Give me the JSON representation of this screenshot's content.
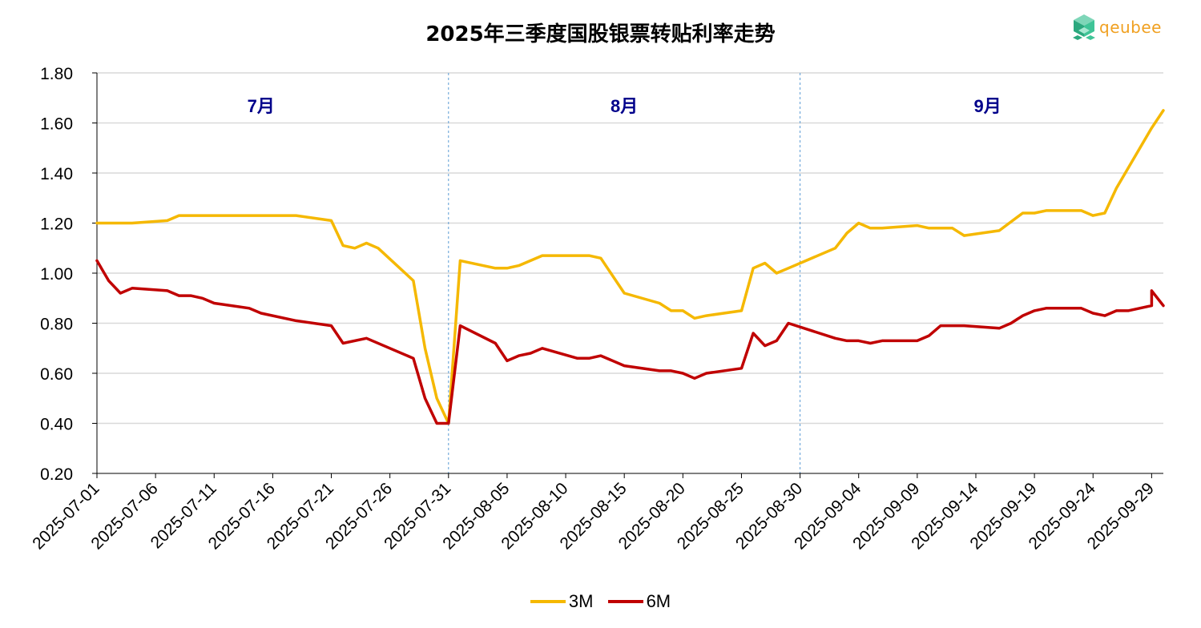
{
  "title": "2025年三季度国股银票转贴利率走势",
  "logo": {
    "text": "qeubee",
    "icon": "cube-logo-icon"
  },
  "colors": {
    "3M": "#F5B800",
    "6M": "#C00000",
    "month_label": "#00008B",
    "grid": "#D9D9D9",
    "divider": "#5B9BD5"
  },
  "chart_data": {
    "type": "line",
    "title": "2025年三季度国股银票转贴利率走势",
    "xlabel": "",
    "ylabel": "",
    "x_start": "2025-07-01",
    "x_end": "2025-09-30",
    "ylim": [
      0.2,
      1.8
    ],
    "yticks": [
      "0.20",
      "0.40",
      "0.60",
      "0.80",
      "1.00",
      "1.20",
      "1.40",
      "1.60",
      "1.80"
    ],
    "xticks": [
      "2025-07-01",
      "2025-07-06",
      "2025-07-11",
      "2025-07-16",
      "2025-07-21",
      "2025-07-26",
      "2025-07-31",
      "2025-08-05",
      "2025-08-10",
      "2025-08-15",
      "2025-08-20",
      "2025-08-25",
      "2025-08-30",
      "2025-09-04",
      "2025-09-09",
      "2025-09-14",
      "2025-09-19",
      "2025-09-24",
      "2025-09-29"
    ],
    "grid": true,
    "legend_position": "bottom",
    "month_labels": [
      {
        "date": "2025-07-15",
        "label": "7月"
      },
      {
        "date": "2025-08-15",
        "label": "8月"
      },
      {
        "date": "2025-09-15",
        "label": "9月"
      }
    ],
    "dividers": [
      "2025-07-31",
      "2025-08-30"
    ],
    "series": [
      {
        "name": "3M",
        "points": [
          [
            "2025-07-01",
            1.2
          ],
          [
            "2025-07-04",
            1.2
          ],
          [
            "2025-07-07",
            1.21
          ],
          [
            "2025-07-08",
            1.23
          ],
          [
            "2025-07-18",
            1.23
          ],
          [
            "2025-07-21",
            1.21
          ],
          [
            "2025-07-22",
            1.11
          ],
          [
            "2025-07-23",
            1.1
          ],
          [
            "2025-07-24",
            1.12
          ],
          [
            "2025-07-25",
            1.1
          ],
          [
            "2025-07-28",
            0.97
          ],
          [
            "2025-07-29",
            0.7
          ],
          [
            "2025-07-30",
            0.5
          ],
          [
            "2025-07-31",
            0.4
          ],
          [
            "2025-08-01",
            1.05
          ],
          [
            "2025-08-04",
            1.02
          ],
          [
            "2025-08-05",
            1.02
          ],
          [
            "2025-08-06",
            1.03
          ],
          [
            "2025-08-08",
            1.07
          ],
          [
            "2025-08-12",
            1.07
          ],
          [
            "2025-08-13",
            1.06
          ],
          [
            "2025-08-15",
            0.92
          ],
          [
            "2025-08-18",
            0.88
          ],
          [
            "2025-08-19",
            0.85
          ],
          [
            "2025-08-20",
            0.85
          ],
          [
            "2025-08-21",
            0.82
          ],
          [
            "2025-08-22",
            0.83
          ],
          [
            "2025-08-25",
            0.85
          ],
          [
            "2025-08-26",
            1.02
          ],
          [
            "2025-08-27",
            1.04
          ],
          [
            "2025-08-28",
            1.0
          ],
          [
            "2025-08-29",
            1.02
          ],
          [
            "2025-09-02",
            1.1
          ],
          [
            "2025-09-03",
            1.16
          ],
          [
            "2025-09-04",
            1.2
          ],
          [
            "2025-09-05",
            1.18
          ],
          [
            "2025-09-06",
            1.18
          ],
          [
            "2025-09-09",
            1.19
          ],
          [
            "2025-09-10",
            1.18
          ],
          [
            "2025-09-12",
            1.18
          ],
          [
            "2025-09-13",
            1.15
          ],
          [
            "2025-09-16",
            1.17
          ],
          [
            "2025-09-18",
            1.24
          ],
          [
            "2025-09-19",
            1.24
          ],
          [
            "2025-09-20",
            1.25
          ],
          [
            "2025-09-23",
            1.25
          ],
          [
            "2025-09-24",
            1.23
          ],
          [
            "2025-09-25",
            1.24
          ],
          [
            "2025-09-26",
            1.34
          ],
          [
            "2025-09-29",
            1.58
          ],
          [
            "2025-09-30",
            1.65
          ]
        ]
      },
      {
        "name": "6M",
        "points": [
          [
            "2025-07-01",
            1.05
          ],
          [
            "2025-07-02",
            0.97
          ],
          [
            "2025-07-03",
            0.92
          ],
          [
            "2025-07-04",
            0.94
          ],
          [
            "2025-07-07",
            0.93
          ],
          [
            "2025-07-08",
            0.91
          ],
          [
            "2025-07-09",
            0.91
          ],
          [
            "2025-07-10",
            0.9
          ],
          [
            "2025-07-11",
            0.88
          ],
          [
            "2025-07-14",
            0.86
          ],
          [
            "2025-07-15",
            0.84
          ],
          [
            "2025-07-18",
            0.81
          ],
          [
            "2025-07-21",
            0.79
          ],
          [
            "2025-07-22",
            0.72
          ],
          [
            "2025-07-24",
            0.74
          ],
          [
            "2025-07-28",
            0.66
          ],
          [
            "2025-07-29",
            0.5
          ],
          [
            "2025-07-30",
            0.4
          ],
          [
            "2025-07-31",
            0.4
          ],
          [
            "2025-08-01",
            0.79
          ],
          [
            "2025-08-04",
            0.72
          ],
          [
            "2025-08-05",
            0.65
          ],
          [
            "2025-08-06",
            0.67
          ],
          [
            "2025-08-07",
            0.68
          ],
          [
            "2025-08-08",
            0.7
          ],
          [
            "2025-08-11",
            0.66
          ],
          [
            "2025-08-12",
            0.66
          ],
          [
            "2025-08-13",
            0.67
          ],
          [
            "2025-08-15",
            0.63
          ],
          [
            "2025-08-18",
            0.61
          ],
          [
            "2025-08-19",
            0.61
          ],
          [
            "2025-08-20",
            0.6
          ],
          [
            "2025-08-21",
            0.58
          ],
          [
            "2025-08-22",
            0.6
          ],
          [
            "2025-08-25",
            0.62
          ],
          [
            "2025-08-26",
            0.76
          ],
          [
            "2025-08-27",
            0.71
          ],
          [
            "2025-08-28",
            0.73
          ],
          [
            "2025-08-29",
            0.8
          ],
          [
            "2025-09-02",
            0.74
          ],
          [
            "2025-09-03",
            0.73
          ],
          [
            "2025-09-04",
            0.73
          ],
          [
            "2025-09-05",
            0.72
          ],
          [
            "2025-09-06",
            0.73
          ],
          [
            "2025-09-08",
            0.73
          ],
          [
            "2025-09-09",
            0.73
          ],
          [
            "2025-09-10",
            0.75
          ],
          [
            "2025-09-11",
            0.79
          ],
          [
            "2025-09-12",
            0.79
          ],
          [
            "2025-09-13",
            0.79
          ],
          [
            "2025-09-16",
            0.78
          ],
          [
            "2025-09-17",
            0.8
          ],
          [
            "2025-09-18",
            0.83
          ],
          [
            "2025-09-19",
            0.85
          ],
          [
            "2025-09-20",
            0.86
          ],
          [
            "2025-09-23",
            0.86
          ],
          [
            "2025-09-24",
            0.84
          ],
          [
            "2025-09-25",
            0.83
          ],
          [
            "2025-09-26",
            0.85
          ],
          [
            "2025-09-27",
            0.85
          ],
          [
            "2025-09-29",
            0.87
          ],
          [
            "2025-09-29",
            0.93
          ],
          [
            "2025-09-30",
            0.87
          ]
        ]
      }
    ]
  }
}
